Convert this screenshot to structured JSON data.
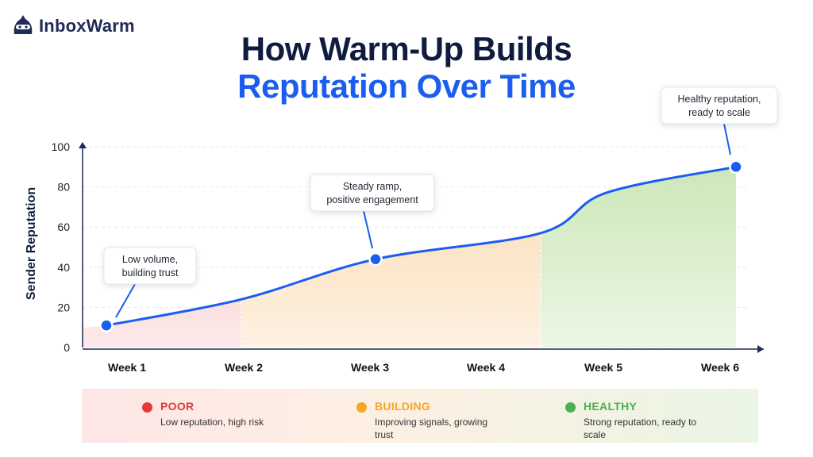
{
  "brand": {
    "name": "InboxWarm"
  },
  "title": {
    "line1": "How Warm-Up Builds",
    "line2": "Reputation Over Time"
  },
  "chart_data": {
    "type": "area",
    "ylabel": "Sender Reputation",
    "xlabel": "",
    "ylim": [
      0,
      100
    ],
    "yticks": [
      0,
      20,
      40,
      60,
      80,
      100
    ],
    "grid": true,
    "categories": [
      "Week 1",
      "Week 2",
      "Week 3",
      "Week 4",
      "Week 5",
      "Week 6"
    ],
    "series": [
      {
        "values": [
          11,
          24,
          44,
          57,
          77,
          90
        ]
      }
    ],
    "highlighted_points": [
      {
        "category": "Week 1",
        "value": 11,
        "annotation": [
          "Low volume,",
          "building trust"
        ]
      },
      {
        "category": "Week 3",
        "value": 44,
        "annotation": [
          "Steady ramp,",
          "positive engagement"
        ]
      },
      {
        "category": "Week 6",
        "value": 90,
        "annotation": [
          "Healthy reputation,",
          "ready to scale"
        ]
      }
    ],
    "zones": [
      {
        "name": "POOR",
        "from": "Week 1",
        "to": "Week 2",
        "color": "#f7c1c1"
      },
      {
        "name": "BUILDING",
        "from": "Week 2",
        "to": "Week 4",
        "color": "#fbd9ad"
      },
      {
        "name": "HEALTHY",
        "from": "Week 4",
        "to": "Week 6",
        "color": "#c9e6b4"
      }
    ],
    "line_color": "#1a5df0"
  },
  "legend": [
    {
      "label": "POOR",
      "desc": "Low reputation, high risk",
      "color": "#e53935"
    },
    {
      "label": "BUILDING",
      "desc": "Improving signals, growing trust",
      "color": "#f5a623"
    },
    {
      "label": "HEALTHY",
      "desc": "Strong reputation, ready to scale",
      "color": "#4caf50"
    }
  ]
}
